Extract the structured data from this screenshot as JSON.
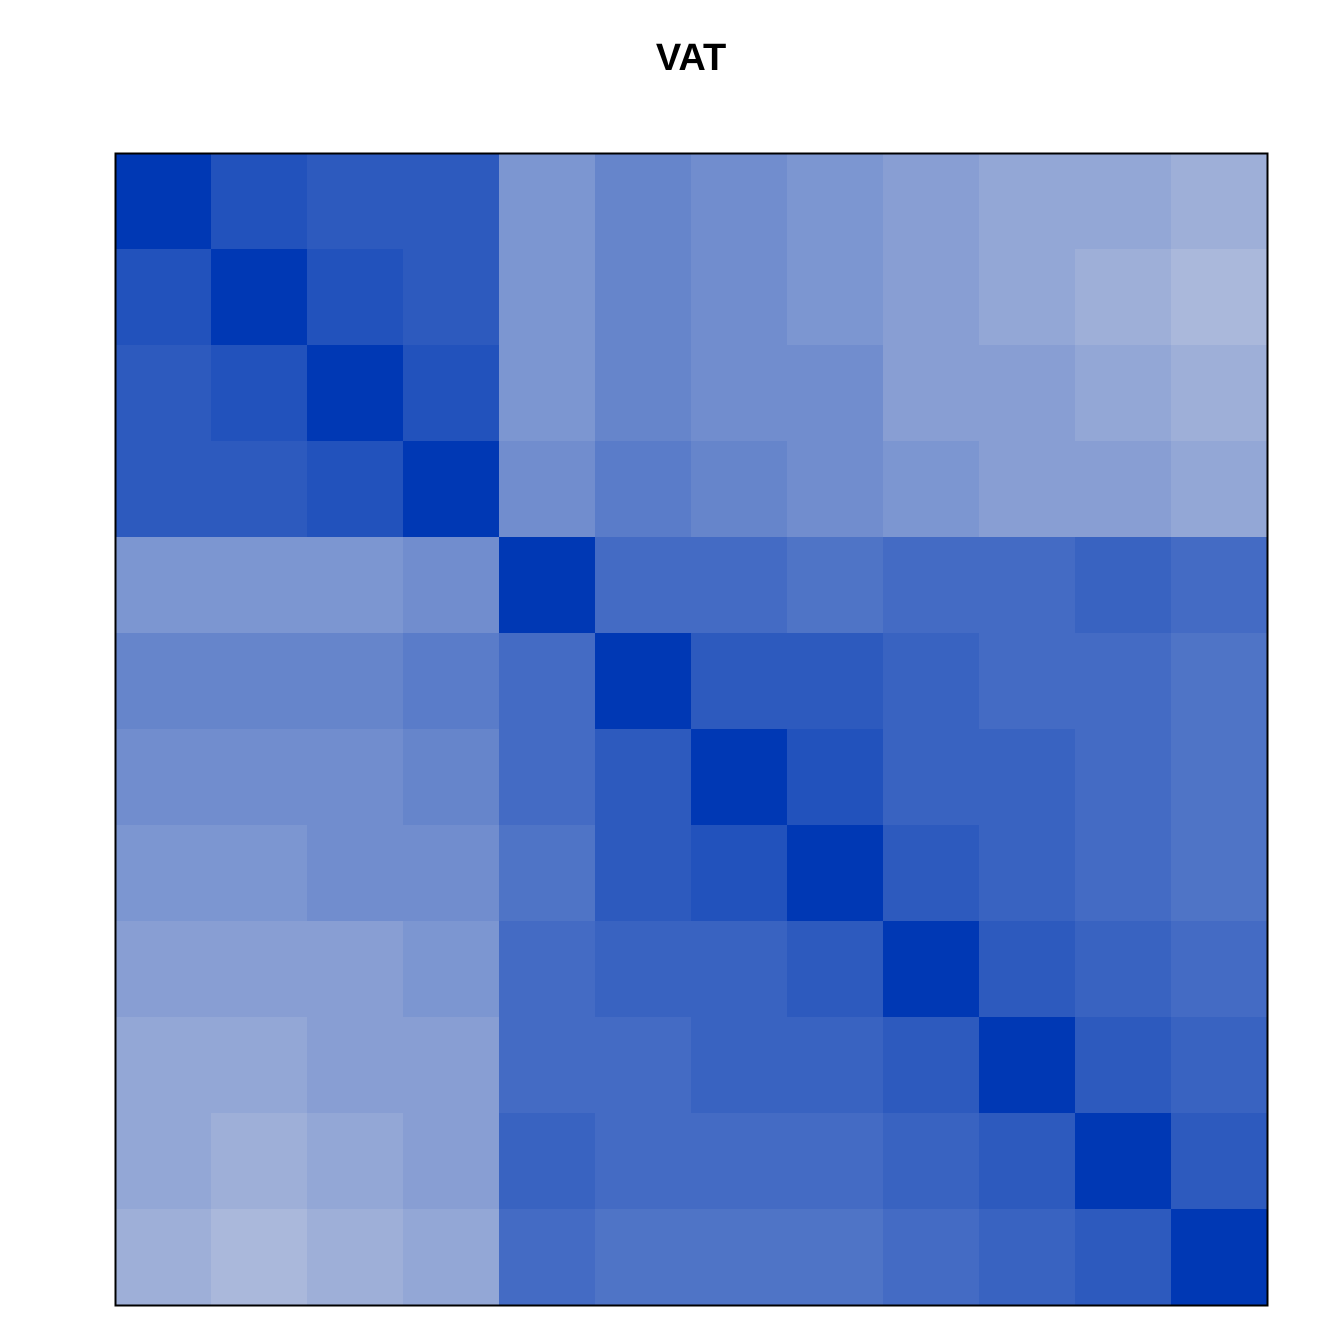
{
  "chart_data": {
    "type": "heatmap",
    "title": "VAT",
    "zlim": [
      0,
      1
    ],
    "color_low": "#0038b4",
    "color_high": "#e2e2e8",
    "matrix": [
      [
        0,
        0.15,
        0.2,
        0.2,
        0.55,
        0.45,
        0.5,
        0.55,
        0.6,
        0.65,
        0.65,
        0.7
      ],
      [
        0.15,
        0,
        0.15,
        0.2,
        0.55,
        0.45,
        0.5,
        0.55,
        0.6,
        0.65,
        0.7,
        0.75
      ],
      [
        0.2,
        0.15,
        0,
        0.15,
        0.55,
        0.45,
        0.5,
        0.5,
        0.6,
        0.6,
        0.65,
        0.7
      ],
      [
        0.2,
        0.2,
        0.15,
        0,
        0.5,
        0.4,
        0.45,
        0.5,
        0.55,
        0.6,
        0.6,
        0.65
      ],
      [
        0.55,
        0.55,
        0.55,
        0.5,
        0,
        0.3,
        0.3,
        0.35,
        0.3,
        0.3,
        0.25,
        0.3
      ],
      [
        0.45,
        0.45,
        0.45,
        0.4,
        0.3,
        0,
        0.2,
        0.2,
        0.25,
        0.3,
        0.3,
        0.35
      ],
      [
        0.5,
        0.5,
        0.5,
        0.45,
        0.3,
        0.2,
        0,
        0.15,
        0.25,
        0.25,
        0.3,
        0.35
      ],
      [
        0.55,
        0.55,
        0.5,
        0.5,
        0.35,
        0.2,
        0.15,
        0,
        0.2,
        0.25,
        0.3,
        0.35
      ],
      [
        0.6,
        0.6,
        0.6,
        0.55,
        0.3,
        0.25,
        0.25,
        0.2,
        0,
        0.2,
        0.25,
        0.3
      ],
      [
        0.65,
        0.65,
        0.6,
        0.6,
        0.3,
        0.3,
        0.25,
        0.25,
        0.2,
        0,
        0.2,
        0.25
      ],
      [
        0.65,
        0.7,
        0.65,
        0.6,
        0.25,
        0.3,
        0.3,
        0.3,
        0.25,
        0.2,
        0,
        0.2
      ],
      [
        0.7,
        0.75,
        0.7,
        0.65,
        0.3,
        0.35,
        0.35,
        0.35,
        0.3,
        0.25,
        0.2,
        0
      ]
    ]
  }
}
